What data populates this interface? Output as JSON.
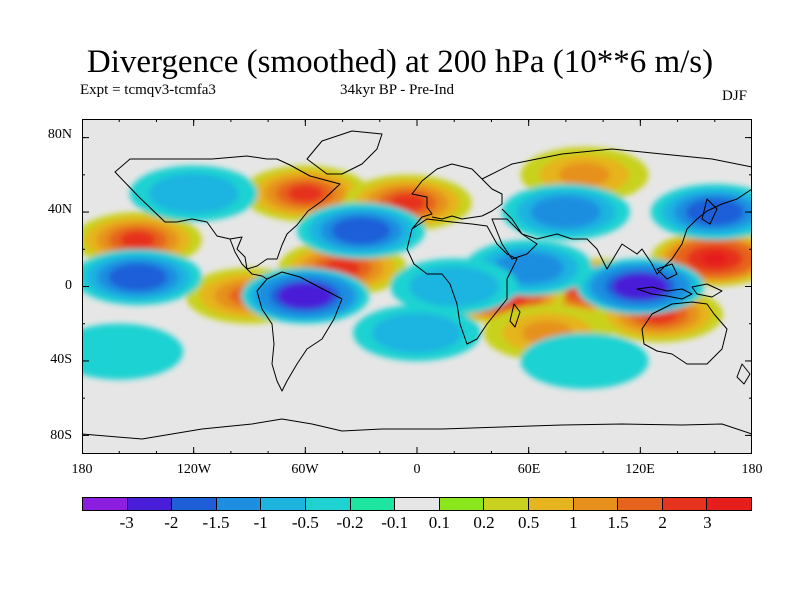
{
  "title": "Divergence (smoothed) at 200 hPa (10**6 m/s)",
  "subtitle_left": "Expt = tcmqv3-tcmfa3",
  "subtitle_center": "34kyr BP - Pre-Ind",
  "season": "DJF",
  "lat_ticks": [
    "80N",
    "40N",
    "0",
    "40S",
    "80S"
  ],
  "lon_ticks": [
    "180",
    "120W",
    "60W",
    "0",
    "60E",
    "120E",
    "180"
  ],
  "colorbar": {
    "colors": [
      "#8c1ee0",
      "#4a1ed8",
      "#1e5fd8",
      "#1e8ee0",
      "#1eb4e0",
      "#1ed2d2",
      "#1ee6a0",
      "#e6e6e6",
      "#8ce61e",
      "#c8d21e",
      "#e6b41e",
      "#e6911e",
      "#e6641e",
      "#e6321e",
      "#e61e1e"
    ],
    "levels": [
      "-3",
      "-2",
      "-1.5",
      "-1",
      "-0.5",
      "-0.2",
      "-0.1",
      "0.1",
      "0.2",
      "0.5",
      "1",
      "1.5",
      "2",
      "3"
    ]
  },
  "chart_data": {
    "type": "heatmap",
    "title": "Divergence (smoothed) at 200 hPa (10**6 m/s)",
    "projection": "cylindrical equidistant",
    "lon_range": [
      -180,
      180
    ],
    "lat_range": [
      -90,
      90
    ],
    "units": "10**6 m/s",
    "levels": [
      -3,
      -2,
      -1.5,
      -1,
      -0.5,
      -0.2,
      -0.1,
      0.1,
      0.2,
      0.5,
      1,
      1.5,
      2,
      3
    ],
    "features": [
      {
        "lon": 95,
        "lat": 0,
        "value": 3
      },
      {
        "lon": 45,
        "lat": -5,
        "value": 3
      },
      {
        "lon": 160,
        "lat": 15,
        "value": 3
      },
      {
        "lon": 130,
        "lat": -15,
        "value": 2
      },
      {
        "lon": -150,
        "lat": 25,
        "value": 2
      },
      {
        "lon": -60,
        "lat": 50,
        "value": 2
      },
      {
        "lon": -5,
        "lat": 45,
        "value": 2
      },
      {
        "lon": -40,
        "lat": 10,
        "value": 2
      },
      {
        "lon": -90,
        "lat": -5,
        "value": 1.5
      },
      {
        "lon": 90,
        "lat": 60,
        "value": 1
      },
      {
        "lon": 70,
        "lat": -25,
        "value": 1
      },
      {
        "lon": -60,
        "lat": -5,
        "value": -3
      },
      {
        "lon": 120,
        "lat": 0,
        "value": -3
      },
      {
        "lon": 160,
        "lat": 40,
        "value": -2
      },
      {
        "lon": -150,
        "lat": 5,
        "value": -2
      },
      {
        "lon": -30,
        "lat": 30,
        "value": -2
      },
      {
        "lon": 80,
        "lat": 40,
        "value": -1.5
      },
      {
        "lon": 60,
        "lat": 10,
        "value": -1.5
      },
      {
        "lon": 20,
        "lat": 0,
        "value": -1
      },
      {
        "lon": 0,
        "lat": -25,
        "value": -1
      },
      {
        "lon": -120,
        "lat": 50,
        "value": -1
      },
      {
        "lon": -160,
        "lat": -35,
        "value": -0.5
      },
      {
        "lon": 90,
        "lat": -40,
        "value": -0.5
      }
    ]
  }
}
